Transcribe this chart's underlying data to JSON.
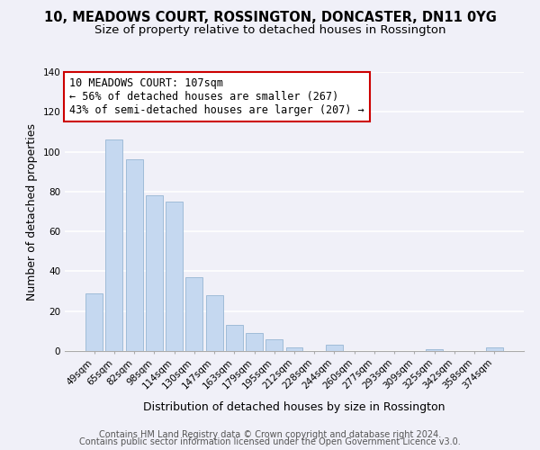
{
  "title": "10, MEADOWS COURT, ROSSINGTON, DONCASTER, DN11 0YG",
  "subtitle": "Size of property relative to detached houses in Rossington",
  "xlabel": "Distribution of detached houses by size in Rossington",
  "ylabel": "Number of detached properties",
  "categories": [
    "49sqm",
    "65sqm",
    "82sqm",
    "98sqm",
    "114sqm",
    "130sqm",
    "147sqm",
    "163sqm",
    "179sqm",
    "195sqm",
    "212sqm",
    "228sqm",
    "244sqm",
    "260sqm",
    "277sqm",
    "293sqm",
    "309sqm",
    "325sqm",
    "342sqm",
    "358sqm",
    "374sqm"
  ],
  "values": [
    29,
    106,
    96,
    78,
    75,
    37,
    28,
    13,
    9,
    6,
    2,
    0,
    3,
    0,
    0,
    0,
    0,
    1,
    0,
    0,
    2
  ],
  "bar_color": "#c5d8f0",
  "bar_edge_color": "#a0bcd8",
  "annotation_line1": "10 MEADOWS COURT: 107sqm",
  "annotation_line2": "← 56% of detached houses are smaller (267)",
  "annotation_line3": "43% of semi-detached houses are larger (207) →",
  "annotation_box_color": "#ffffff",
  "annotation_box_edge_color": "#cc0000",
  "ylim": [
    0,
    140
  ],
  "yticks": [
    0,
    20,
    40,
    60,
    80,
    100,
    120,
    140
  ],
  "footer_line1": "Contains HM Land Registry data © Crown copyright and database right 2024.",
  "footer_line2": "Contains public sector information licensed under the Open Government Licence v3.0.",
  "background_color": "#f0f0f8",
  "title_fontsize": 10.5,
  "subtitle_fontsize": 9.5,
  "annotation_fontsize": 8.5,
  "axis_label_fontsize": 9,
  "tick_fontsize": 7.5,
  "footer_fontsize": 7
}
